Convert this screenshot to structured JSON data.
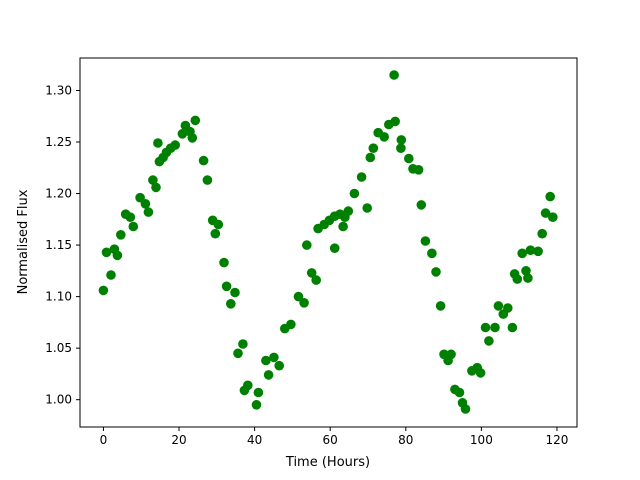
{
  "figure": {
    "background_color": "#ffffff"
  },
  "chart_data": {
    "type": "scatter",
    "title": "",
    "xlabel": "Time (Hours)",
    "ylabel": "Normalised Flux",
    "marker_color": "#008000",
    "marker_shape": "circle",
    "marker_radius_px": 4.8,
    "grid": false,
    "legend": "none",
    "xlim": [
      -6.2,
      125.3
    ],
    "ylim": [
      0.9735,
      1.3315
    ],
    "x_ticks": [
      0,
      20,
      40,
      60,
      80,
      100,
      120
    ],
    "x_tick_labels": [
      "0",
      "20",
      "40",
      "60",
      "80",
      "100",
      "120"
    ],
    "y_ticks": [
      1.0,
      1.05,
      1.1,
      1.15,
      1.2,
      1.25,
      1.3
    ],
    "y_tick_labels": [
      "1.00",
      "1.05",
      "1.10",
      "1.15",
      "1.20",
      "1.25",
      "1.30"
    ],
    "series_name": "normalised-flux-vs-time",
    "points": [
      [
        0.0,
        1.106
      ],
      [
        0.8,
        1.143
      ],
      [
        2.0,
        1.121
      ],
      [
        2.9,
        1.146
      ],
      [
        3.7,
        1.14
      ],
      [
        4.6,
        1.16
      ],
      [
        5.9,
        1.18
      ],
      [
        7.1,
        1.177
      ],
      [
        7.9,
        1.168
      ],
      [
        9.7,
        1.196
      ],
      [
        11.1,
        1.19
      ],
      [
        11.9,
        1.182
      ],
      [
        13.1,
        1.213
      ],
      [
        13.9,
        1.206
      ],
      [
        14.4,
        1.249
      ],
      [
        14.8,
        1.231
      ],
      [
        15.8,
        1.235
      ],
      [
        16.7,
        1.24
      ],
      [
        17.8,
        1.244
      ],
      [
        19.0,
        1.247
      ],
      [
        20.9,
        1.258
      ],
      [
        21.7,
        1.266
      ],
      [
        22.9,
        1.26
      ],
      [
        23.5,
        1.254
      ],
      [
        24.3,
        1.271
      ],
      [
        26.5,
        1.232
      ],
      [
        27.5,
        1.213
      ],
      [
        28.9,
        1.174
      ],
      [
        29.6,
        1.161
      ],
      [
        30.4,
        1.17
      ],
      [
        31.9,
        1.133
      ],
      [
        32.6,
        1.11
      ],
      [
        33.7,
        1.093
      ],
      [
        34.8,
        1.104
      ],
      [
        35.6,
        1.045
      ],
      [
        36.9,
        1.054
      ],
      [
        37.3,
        1.009
      ],
      [
        38.2,
        1.014
      ],
      [
        40.5,
        0.995
      ],
      [
        41.0,
        1.007
      ],
      [
        43.0,
        1.038
      ],
      [
        43.7,
        1.024
      ],
      [
        45.1,
        1.041
      ],
      [
        46.5,
        1.033
      ],
      [
        48.0,
        1.069
      ],
      [
        49.6,
        1.073
      ],
      [
        51.6,
        1.1
      ],
      [
        53.1,
        1.094
      ],
      [
        53.8,
        1.15
      ],
      [
        55.1,
        1.123
      ],
      [
        56.3,
        1.116
      ],
      [
        56.8,
        1.166
      ],
      [
        58.4,
        1.17
      ],
      [
        59.8,
        1.174
      ],
      [
        61.2,
        1.178
      ],
      [
        61.2,
        1.147
      ],
      [
        62.6,
        1.18
      ],
      [
        63.4,
        1.168
      ],
      [
        63.9,
        1.177
      ],
      [
        64.8,
        1.183
      ],
      [
        66.4,
        1.2
      ],
      [
        68.3,
        1.216
      ],
      [
        69.8,
        1.186
      ],
      [
        70.6,
        1.235
      ],
      [
        71.4,
        1.244
      ],
      [
        72.7,
        1.259
      ],
      [
        74.3,
        1.255
      ],
      [
        75.5,
        1.267
      ],
      [
        76.9,
        1.315
      ],
      [
        77.2,
        1.27
      ],
      [
        78.7,
        1.244
      ],
      [
        78.8,
        1.252
      ],
      [
        80.8,
        1.234
      ],
      [
        81.9,
        1.224
      ],
      [
        83.4,
        1.223
      ],
      [
        84.1,
        1.189
      ],
      [
        85.2,
        1.154
      ],
      [
        86.9,
        1.142
      ],
      [
        88.0,
        1.124
      ],
      [
        89.2,
        1.091
      ],
      [
        90.1,
        1.044
      ],
      [
        91.2,
        1.038
      ],
      [
        92.0,
        1.044
      ],
      [
        93.0,
        1.01
      ],
      [
        94.2,
        1.007
      ],
      [
        95.0,
        0.997
      ],
      [
        95.8,
        0.991
      ],
      [
        97.5,
        1.028
      ],
      [
        98.9,
        1.031
      ],
      [
        99.8,
        1.026
      ],
      [
        101.1,
        1.07
      ],
      [
        102.0,
        1.057
      ],
      [
        103.6,
        1.07
      ],
      [
        104.5,
        1.091
      ],
      [
        105.8,
        1.083
      ],
      [
        107.0,
        1.089
      ],
      [
        108.2,
        1.07
      ],
      [
        108.8,
        1.122
      ],
      [
        109.5,
        1.117
      ],
      [
        110.8,
        1.142
      ],
      [
        111.8,
        1.125
      ],
      [
        112.3,
        1.118
      ],
      [
        113.0,
        1.145
      ],
      [
        115.0,
        1.144
      ],
      [
        116.1,
        1.161
      ],
      [
        117.0,
        1.181
      ],
      [
        118.2,
        1.197
      ],
      [
        118.9,
        1.177
      ]
    ]
  }
}
